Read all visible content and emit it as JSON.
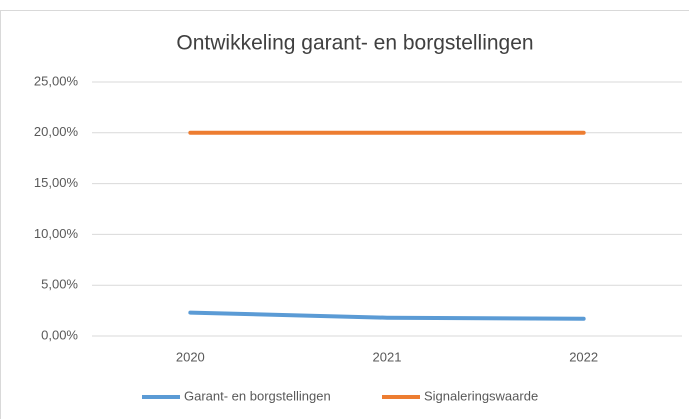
{
  "chart_data": {
    "type": "line",
    "title": "Ontwikkeling garant- en borgstellingen",
    "categories": [
      "2020",
      "2021",
      "2022"
    ],
    "series": [
      {
        "name": "Garant- en borgstellingen",
        "color": "#5b9bd5",
        "values": [
          2.3,
          1.8,
          1.7
        ]
      },
      {
        "name": "Signaleringswaarde",
        "color": "#ed7d31",
        "values": [
          20,
          20,
          20
        ]
      }
    ],
    "ylim": [
      0,
      25
    ],
    "yticks": [
      {
        "value": 0,
        "label": "0,00%"
      },
      {
        "value": 5,
        "label": "5,00%"
      },
      {
        "value": 10,
        "label": "10,00%"
      },
      {
        "value": 15,
        "label": "15,00%"
      },
      {
        "value": 20,
        "label": "20,00%"
      },
      {
        "value": 25,
        "label": "25,00%"
      }
    ],
    "grid": true,
    "legend": "bottom"
  }
}
